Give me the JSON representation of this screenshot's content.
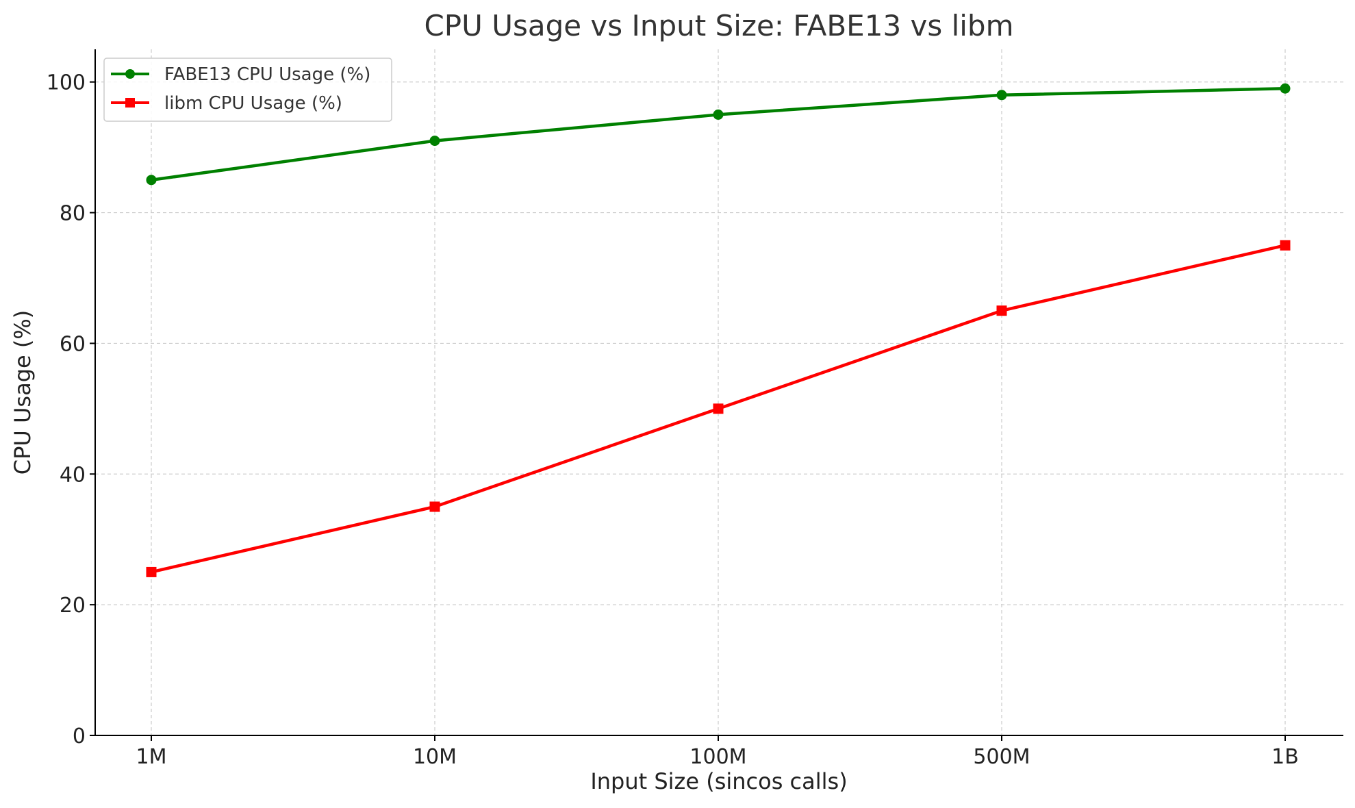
{
  "chart_data": {
    "type": "line",
    "title": "CPU Usage vs Input Size: FABE13 vs libm",
    "xlabel": "Input Size (sincos calls)",
    "ylabel": "CPU Usage (%)",
    "categories": [
      "1M",
      "10M",
      "100M",
      "500M",
      "1B"
    ],
    "ylim": [
      0,
      105
    ],
    "yticks": [
      0,
      20,
      40,
      60,
      80,
      100
    ],
    "grid": true,
    "legend_position": "top-left",
    "series": [
      {
        "name": "FABE13 CPU Usage (%)",
        "color": "#008000",
        "marker": "circle",
        "values": [
          85,
          91,
          95,
          98,
          99
        ]
      },
      {
        "name": "libm CPU Usage (%)",
        "color": "#ff0000",
        "marker": "square",
        "values": [
          25,
          35,
          50,
          65,
          75
        ]
      }
    ]
  }
}
